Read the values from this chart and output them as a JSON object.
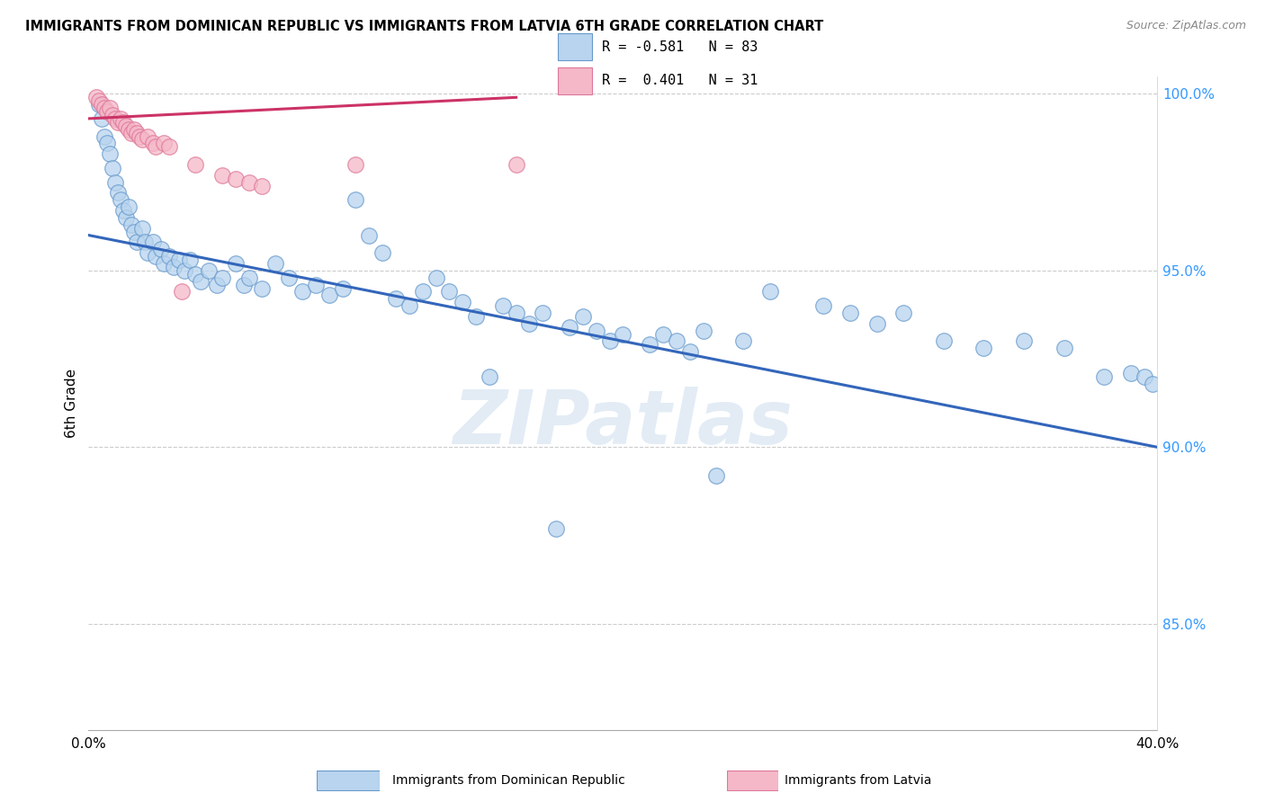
{
  "title": "IMMIGRANTS FROM DOMINICAN REPUBLIC VS IMMIGRANTS FROM LATVIA 6TH GRADE CORRELATION CHART",
  "source": "Source: ZipAtlas.com",
  "ylabel": "6th Grade",
  "watermark": "ZIPatlas",
  "blue_color": "#b8d4ee",
  "blue_edge_color": "#6699cc",
  "blue_line_color": "#3366bb",
  "pink_color": "#f5b8c8",
  "pink_edge_color": "#dd7799",
  "pink_line_color": "#cc3366",
  "legend_text_blue": "R = -0.581   N = 83",
  "legend_text_pink": "R =  0.401   N = 31",
  "legend_label_blue": "Immigrants from Dominican Republic",
  "legend_label_pink": "Immigrants from Latvia",
  "xlim": [
    0.0,
    0.4
  ],
  "ylim": [
    0.82,
    1.005
  ],
  "y_ticks": [
    0.85,
    0.9,
    0.95,
    1.0
  ],
  "y_tick_labels": [
    "85.0%",
    "90.0%",
    "95.0%",
    "100.0%"
  ],
  "x_ticks": [
    0.0,
    0.1,
    0.2,
    0.3,
    0.4
  ],
  "x_tick_labels": [
    "0.0%",
    "",
    "",
    "",
    "40.0%"
  ],
  "blue_line": [
    [
      0.0,
      0.96
    ],
    [
      0.4,
      0.9
    ]
  ],
  "pink_line": [
    [
      0.0,
      0.993
    ],
    [
      0.16,
      0.999
    ]
  ],
  "blue_dots": [
    [
      0.004,
      0.997
    ],
    [
      0.005,
      0.993
    ],
    [
      0.006,
      0.988
    ],
    [
      0.007,
      0.986
    ],
    [
      0.008,
      0.983
    ],
    [
      0.009,
      0.979
    ],
    [
      0.01,
      0.975
    ],
    [
      0.011,
      0.972
    ],
    [
      0.012,
      0.97
    ],
    [
      0.013,
      0.967
    ],
    [
      0.014,
      0.965
    ],
    [
      0.015,
      0.968
    ],
    [
      0.016,
      0.963
    ],
    [
      0.017,
      0.961
    ],
    [
      0.018,
      0.958
    ],
    [
      0.02,
      0.962
    ],
    [
      0.021,
      0.958
    ],
    [
      0.022,
      0.955
    ],
    [
      0.024,
      0.958
    ],
    [
      0.025,
      0.954
    ],
    [
      0.027,
      0.956
    ],
    [
      0.028,
      0.952
    ],
    [
      0.03,
      0.954
    ],
    [
      0.032,
      0.951
    ],
    [
      0.034,
      0.953
    ],
    [
      0.036,
      0.95
    ],
    [
      0.038,
      0.953
    ],
    [
      0.04,
      0.949
    ],
    [
      0.042,
      0.947
    ],
    [
      0.045,
      0.95
    ],
    [
      0.048,
      0.946
    ],
    [
      0.05,
      0.948
    ],
    [
      0.055,
      0.952
    ],
    [
      0.058,
      0.946
    ],
    [
      0.06,
      0.948
    ],
    [
      0.065,
      0.945
    ],
    [
      0.07,
      0.952
    ],
    [
      0.075,
      0.948
    ],
    [
      0.08,
      0.944
    ],
    [
      0.085,
      0.946
    ],
    [
      0.09,
      0.943
    ],
    [
      0.095,
      0.945
    ],
    [
      0.1,
      0.97
    ],
    [
      0.105,
      0.96
    ],
    [
      0.11,
      0.955
    ],
    [
      0.115,
      0.942
    ],
    [
      0.12,
      0.94
    ],
    [
      0.125,
      0.944
    ],
    [
      0.13,
      0.948
    ],
    [
      0.135,
      0.944
    ],
    [
      0.14,
      0.941
    ],
    [
      0.145,
      0.937
    ],
    [
      0.15,
      0.92
    ],
    [
      0.155,
      0.94
    ],
    [
      0.16,
      0.938
    ],
    [
      0.165,
      0.935
    ],
    [
      0.17,
      0.938
    ],
    [
      0.175,
      0.877
    ],
    [
      0.18,
      0.934
    ],
    [
      0.185,
      0.937
    ],
    [
      0.19,
      0.933
    ],
    [
      0.195,
      0.93
    ],
    [
      0.2,
      0.932
    ],
    [
      0.21,
      0.929
    ],
    [
      0.215,
      0.932
    ],
    [
      0.22,
      0.93
    ],
    [
      0.225,
      0.927
    ],
    [
      0.23,
      0.933
    ],
    [
      0.235,
      0.892
    ],
    [
      0.245,
      0.93
    ],
    [
      0.255,
      0.944
    ],
    [
      0.275,
      0.94
    ],
    [
      0.285,
      0.938
    ],
    [
      0.295,
      0.935
    ],
    [
      0.305,
      0.938
    ],
    [
      0.32,
      0.93
    ],
    [
      0.335,
      0.928
    ],
    [
      0.35,
      0.93
    ],
    [
      0.365,
      0.928
    ],
    [
      0.38,
      0.92
    ],
    [
      0.39,
      0.921
    ],
    [
      0.395,
      0.92
    ],
    [
      0.398,
      0.918
    ]
  ],
  "pink_dots": [
    [
      0.003,
      0.999
    ],
    [
      0.004,
      0.998
    ],
    [
      0.005,
      0.997
    ],
    [
      0.006,
      0.996
    ],
    [
      0.007,
      0.995
    ],
    [
      0.008,
      0.996
    ],
    [
      0.009,
      0.994
    ],
    [
      0.01,
      0.993
    ],
    [
      0.011,
      0.992
    ],
    [
      0.012,
      0.993
    ],
    [
      0.013,
      0.992
    ],
    [
      0.014,
      0.991
    ],
    [
      0.015,
      0.99
    ],
    [
      0.016,
      0.989
    ],
    [
      0.017,
      0.99
    ],
    [
      0.018,
      0.989
    ],
    [
      0.019,
      0.988
    ],
    [
      0.02,
      0.987
    ],
    [
      0.022,
      0.988
    ],
    [
      0.024,
      0.986
    ],
    [
      0.025,
      0.985
    ],
    [
      0.028,
      0.986
    ],
    [
      0.03,
      0.985
    ],
    [
      0.035,
      0.944
    ],
    [
      0.04,
      0.98
    ],
    [
      0.05,
      0.977
    ],
    [
      0.055,
      0.976
    ],
    [
      0.06,
      0.975
    ],
    [
      0.065,
      0.974
    ],
    [
      0.1,
      0.98
    ],
    [
      0.16,
      0.98
    ]
  ]
}
